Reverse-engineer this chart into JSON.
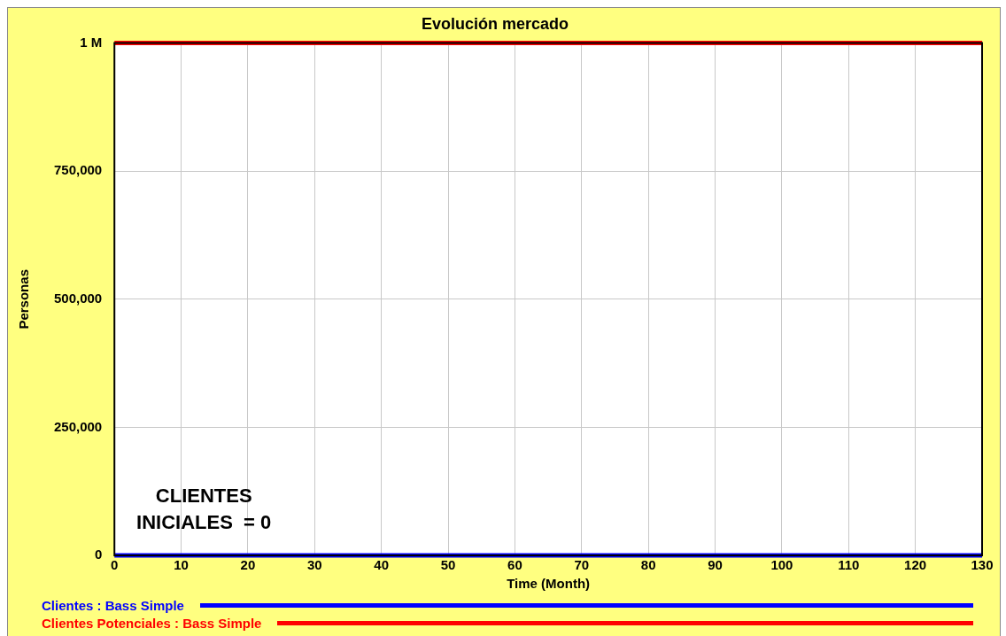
{
  "chart_data": {
    "type": "line",
    "title": "Evolución mercado",
    "xlabel": "Time (Month)",
    "ylabel": "Personas",
    "x": [
      0,
      130
    ],
    "series": [
      {
        "name": "Clientes : Bass Simple",
        "color": "#0000ff",
        "values": [
          0,
          0
        ]
      },
      {
        "name": "Clientes Potenciales : Bass Simple",
        "color": "#ff0000",
        "values": [
          1000000,
          1000000
        ]
      }
    ],
    "xlim": [
      0,
      130
    ],
    "xticks": [
      0,
      10,
      20,
      30,
      40,
      50,
      60,
      70,
      80,
      90,
      100,
      110,
      120,
      130
    ],
    "ylim": [
      0,
      1000000
    ],
    "yticks": [
      0,
      {
        "value": 250000,
        "label": "250,000"
      },
      {
        "value": 500000,
        "label": "500,000"
      },
      {
        "value": 750000,
        "label": "750,000"
      },
      {
        "value": 1000000,
        "label": "1 M"
      }
    ],
    "grid": true,
    "legend": "bottom",
    "marker": "none",
    "line_style": "solid",
    "annotations": [
      "CLIENTES INICIALES  = 0"
    ]
  }
}
